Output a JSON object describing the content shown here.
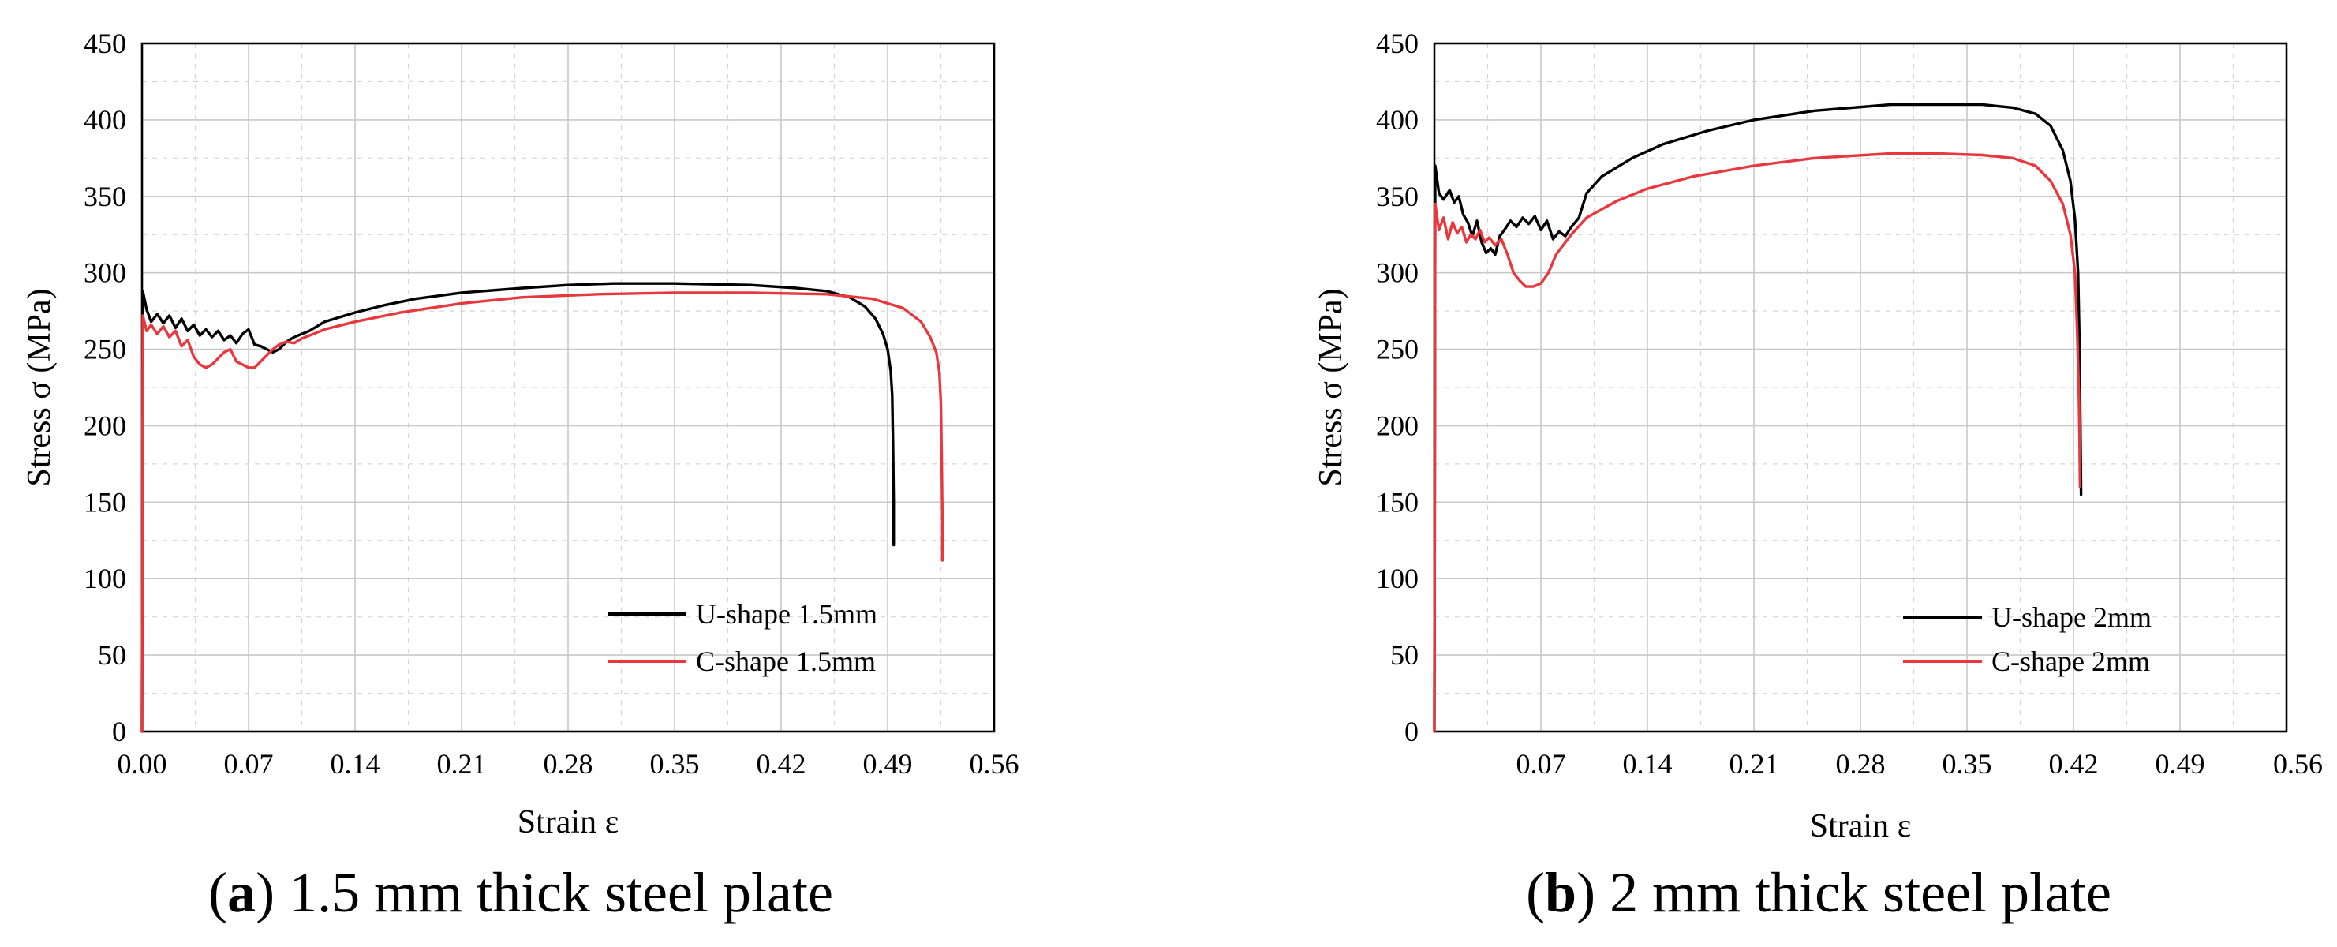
{
  "chart_data": [
    {
      "type": "line",
      "panel": "a",
      "caption_letter": "a",
      "caption_open": "(",
      "caption_close": ")",
      "caption_text": " 1.5 mm thick steel plate",
      "xlabel": "Strain ε",
      "ylabel": "Stress σ (MPa)",
      "xlim": [
        0,
        0.56
      ],
      "ylim": [
        0,
        450
      ],
      "xticks": [
        "0.00",
        "0.07",
        "0.14",
        "0.21",
        "0.28",
        "0.35",
        "0.42",
        "0.49",
        "0.56"
      ],
      "yticks": [
        "0",
        "50",
        "100",
        "150",
        "200",
        "250",
        "300",
        "350",
        "400",
        "450"
      ],
      "grid": true,
      "legend_position": "bottom-right",
      "series": [
        {
          "name": "U-shape 1.5mm",
          "color": "#000000",
          "points": [
            [
              0,
              0
            ],
            [
              0.0005,
              288
            ],
            [
              0.003,
              276
            ],
            [
              0.006,
              268
            ],
            [
              0.01,
              273
            ],
            [
              0.014,
              267
            ],
            [
              0.018,
              272
            ],
            [
              0.022,
              264
            ],
            [
              0.026,
              270
            ],
            [
              0.03,
              262
            ],
            [
              0.034,
              266
            ],
            [
              0.038,
              259
            ],
            [
              0.042,
              263
            ],
            [
              0.046,
              258
            ],
            [
              0.05,
              262
            ],
            [
              0.054,
              256
            ],
            [
              0.058,
              259
            ],
            [
              0.062,
              254
            ],
            [
              0.066,
              260
            ],
            [
              0.07,
              263
            ],
            [
              0.074,
              253
            ],
            [
              0.078,
              252
            ],
            [
              0.082,
              250
            ],
            [
              0.086,
              248
            ],
            [
              0.09,
              250
            ],
            [
              0.095,
              255
            ],
            [
              0.1,
              258
            ],
            [
              0.11,
              262
            ],
            [
              0.12,
              268
            ],
            [
              0.14,
              274
            ],
            [
              0.16,
              279
            ],
            [
              0.18,
              283
            ],
            [
              0.21,
              287
            ],
            [
              0.25,
              290
            ],
            [
              0.28,
              292
            ],
            [
              0.31,
              293
            ],
            [
              0.35,
              293
            ],
            [
              0.4,
              292
            ],
            [
              0.43,
              290
            ],
            [
              0.45,
              288
            ],
            [
              0.465,
              284
            ],
            [
              0.475,
              278
            ],
            [
              0.482,
              270
            ],
            [
              0.487,
              260
            ],
            [
              0.49,
              250
            ],
            [
              0.492,
              236
            ],
            [
              0.493,
              220
            ],
            [
              0.4935,
              190
            ],
            [
              0.494,
              150
            ],
            [
              0.494,
              122
            ]
          ]
        },
        {
          "name": "C-shape 1.5mm",
          "color": "#e8383d",
          "points": [
            [
              0,
              0
            ],
            [
              0.0005,
              272
            ],
            [
              0.003,
              262
            ],
            [
              0.006,
              266
            ],
            [
              0.01,
              260
            ],
            [
              0.014,
              265
            ],
            [
              0.018,
              258
            ],
            [
              0.022,
              262
            ],
            [
              0.026,
              252
            ],
            [
              0.03,
              256
            ],
            [
              0.034,
              245
            ],
            [
              0.038,
              240
            ],
            [
              0.042,
              238
            ],
            [
              0.046,
              240
            ],
            [
              0.05,
              244
            ],
            [
              0.054,
              248
            ],
            [
              0.058,
              250
            ],
            [
              0.062,
              242
            ],
            [
              0.066,
              240
            ],
            [
              0.07,
              238
            ],
            [
              0.074,
              238
            ],
            [
              0.078,
              242
            ],
            [
              0.082,
              246
            ],
            [
              0.086,
              250
            ],
            [
              0.09,
              253
            ],
            [
              0.095,
              255
            ],
            [
              0.1,
              254
            ],
            [
              0.105,
              257
            ],
            [
              0.12,
              263
            ],
            [
              0.14,
              268
            ],
            [
              0.17,
              274
            ],
            [
              0.21,
              280
            ],
            [
              0.25,
              284
            ],
            [
              0.3,
              286
            ],
            [
              0.35,
              287
            ],
            [
              0.4,
              287
            ],
            [
              0.45,
              286
            ],
            [
              0.48,
              283
            ],
            [
              0.5,
              277
            ],
            [
              0.512,
              268
            ],
            [
              0.518,
              258
            ],
            [
              0.522,
              248
            ],
            [
              0.524,
              235
            ],
            [
              0.525,
              215
            ],
            [
              0.5255,
              180
            ],
            [
              0.526,
              140
            ],
            [
              0.526,
              112
            ]
          ]
        }
      ]
    },
    {
      "type": "line",
      "panel": "b",
      "caption_letter": "b",
      "caption_open": "(",
      "caption_close": ")",
      "caption_text": " 2 mm thick steel plate",
      "xlabel": "Strain ε",
      "ylabel": "Stress σ (MPa)",
      "xlim": [
        0,
        0.56
      ],
      "ylim": [
        0,
        450
      ],
      "xticks": [
        "",
        "0.07",
        "0.14",
        "0.21",
        "0.28",
        "0.35",
        "0.42",
        "0.49",
        "0.56"
      ],
      "yticks": [
        "0",
        "50",
        "100",
        "150",
        "200",
        "250",
        "300",
        "350",
        "400",
        "450"
      ],
      "grid": true,
      "legend_position": "bottom-right",
      "series": [
        {
          "name": "U-shape 2mm",
          "color": "#000000",
          "points": [
            [
              0,
              0
            ],
            [
              0.0005,
              370
            ],
            [
              0.003,
              352
            ],
            [
              0.006,
              348
            ],
            [
              0.01,
              354
            ],
            [
              0.013,
              346
            ],
            [
              0.016,
              350
            ],
            [
              0.019,
              338
            ],
            [
              0.022,
              333
            ],
            [
              0.025,
              324
            ],
            [
              0.028,
              334
            ],
            [
              0.031,
              320
            ],
            [
              0.034,
              313
            ],
            [
              0.037,
              316
            ],
            [
              0.04,
              312
            ],
            [
              0.043,
              324
            ],
            [
              0.046,
              328
            ],
            [
              0.05,
              334
            ],
            [
              0.054,
              330
            ],
            [
              0.058,
              336
            ],
            [
              0.062,
              332
            ],
            [
              0.066,
              337
            ],
            [
              0.07,
              328
            ],
            [
              0.074,
              334
            ],
            [
              0.078,
              322
            ],
            [
              0.082,
              327
            ],
            [
              0.086,
              324
            ],
            [
              0.09,
              330
            ],
            [
              0.095,
              336
            ],
            [
              0.1,
              352
            ],
            [
              0.11,
              363
            ],
            [
              0.13,
              375
            ],
            [
              0.15,
              384
            ],
            [
              0.18,
              393
            ],
            [
              0.21,
              400
            ],
            [
              0.25,
              406
            ],
            [
              0.3,
              410
            ],
            [
              0.33,
              410
            ],
            [
              0.36,
              410
            ],
            [
              0.38,
              408
            ],
            [
              0.395,
              404
            ],
            [
              0.405,
              396
            ],
            [
              0.413,
              380
            ],
            [
              0.418,
              360
            ],
            [
              0.421,
              335
            ],
            [
              0.423,
              300
            ],
            [
              0.424,
              250
            ],
            [
              0.4245,
              200
            ],
            [
              0.425,
              155
            ]
          ]
        },
        {
          "name": "C-shape 2mm",
          "color": "#e8383d",
          "points": [
            [
              0,
              0
            ],
            [
              0.0005,
              345
            ],
            [
              0.003,
              328
            ],
            [
              0.006,
              336
            ],
            [
              0.009,
              322
            ],
            [
              0.012,
              333
            ],
            [
              0.015,
              326
            ],
            [
              0.018,
              330
            ],
            [
              0.021,
              320
            ],
            [
              0.024,
              325
            ],
            [
              0.027,
              322
            ],
            [
              0.03,
              328
            ],
            [
              0.033,
              320
            ],
            [
              0.036,
              323
            ],
            [
              0.04,
              318
            ],
            [
              0.044,
              322
            ],
            [
              0.048,
              312
            ],
            [
              0.052,
              300
            ],
            [
              0.056,
              295
            ],
            [
              0.06,
              291
            ],
            [
              0.065,
              291
            ],
            [
              0.07,
              293
            ],
            [
              0.075,
              300
            ],
            [
              0.08,
              312
            ],
            [
              0.09,
              325
            ],
            [
              0.1,
              336
            ],
            [
              0.12,
              347
            ],
            [
              0.14,
              355
            ],
            [
              0.17,
              363
            ],
            [
              0.21,
              370
            ],
            [
              0.25,
              375
            ],
            [
              0.3,
              378
            ],
            [
              0.33,
              378
            ],
            [
              0.36,
              377
            ],
            [
              0.38,
              375
            ],
            [
              0.395,
              370
            ],
            [
              0.405,
              360
            ],
            [
              0.413,
              345
            ],
            [
              0.418,
              325
            ],
            [
              0.421,
              300
            ],
            [
              0.4225,
              260
            ],
            [
              0.4235,
              220
            ],
            [
              0.424,
              190
            ],
            [
              0.4243,
              160
            ]
          ]
        }
      ]
    }
  ]
}
